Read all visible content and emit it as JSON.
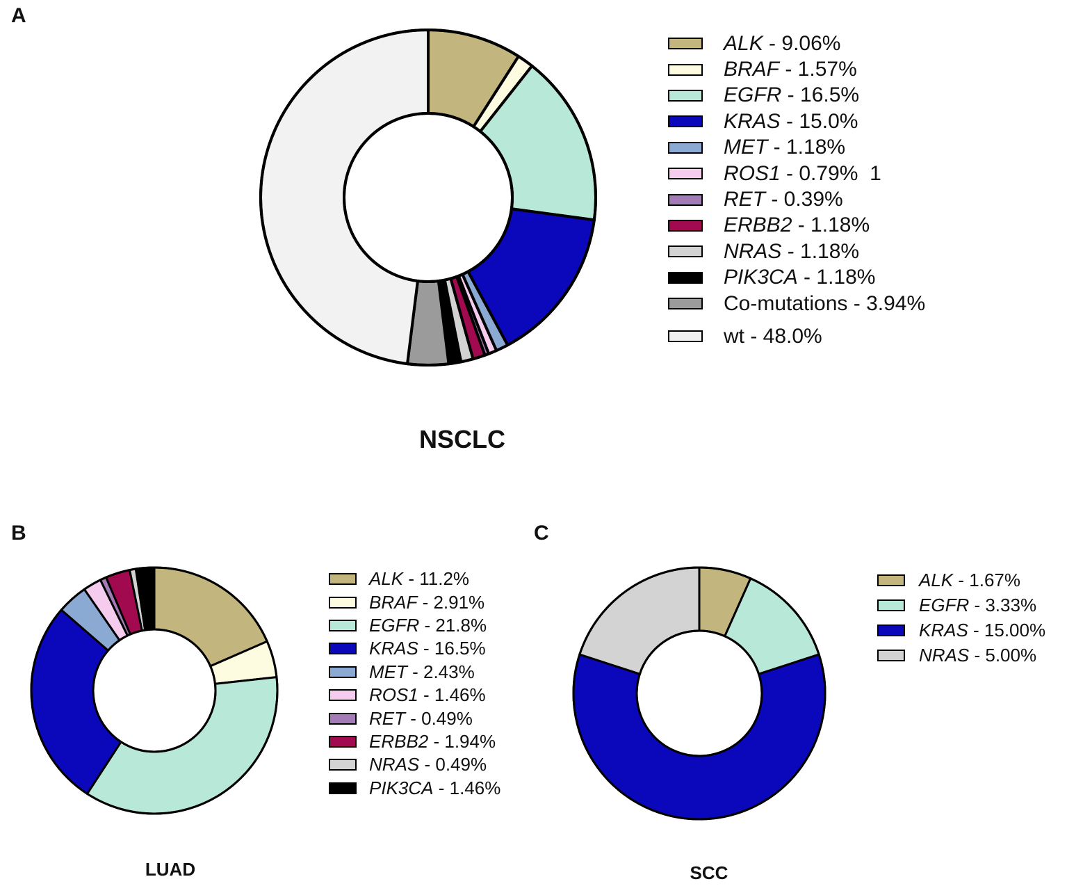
{
  "chart_data": [
    {
      "panel": "A",
      "type": "pie",
      "title": "NSCLC",
      "series": [
        {
          "name": "ALK",
          "label": " - 9.06%",
          "value": 9.06,
          "color": "#C2B57E"
        },
        {
          "name": "BRAF",
          "label": " - 1.57%",
          "value": 1.57,
          "color": "#FDFBE0"
        },
        {
          "name": "EGFR",
          "label": " - 16.5%",
          "value": 16.5,
          "color": "#B8E8D8"
        },
        {
          "name": "KRAS",
          "label": " - 15.0%",
          "value": 15.0,
          "color": "#0B08BC"
        },
        {
          "name": "MET",
          "label": " - 1.18%",
          "value": 1.18,
          "color": "#8AA9D3"
        },
        {
          "name": "ROS1",
          "label": " - 0.79%  1",
          "value": 0.79,
          "color": "#F5CCEE"
        },
        {
          "name": "RET",
          "label": " - 0.39%",
          "value": 0.39,
          "color": "#A37CB7"
        },
        {
          "name": "ERBB2",
          "label": " - 1.18%",
          "value": 1.18,
          "color": "#A10A4F"
        },
        {
          "name": "NRAS",
          "label": " - 1.18%",
          "value": 1.18,
          "color": "#D3D3D3"
        },
        {
          "name": "PIK3CA",
          "label": " - 1.18%",
          "value": 1.18,
          "color": "#000000"
        },
        {
          "name": "Co-mutations",
          "label": " - 3.94%",
          "value": 3.94,
          "color": "#9B9B9B",
          "plain": true
        },
        {
          "name": "wt",
          "label": " - 48.0%",
          "value": 48.0,
          "color": "#F2F2F2",
          "plain": true
        }
      ]
    },
    {
      "panel": "B",
      "type": "pie",
      "title": "LUAD",
      "series": [
        {
          "name": "ALK",
          "label": " - 11.2%",
          "value": 11.2,
          "color": "#C2B57E"
        },
        {
          "name": "BRAF",
          "label": " - 2.91%",
          "value": 2.91,
          "color": "#FDFBE0"
        },
        {
          "name": "EGFR",
          "label": " - 21.8%",
          "value": 21.8,
          "color": "#B8E8D8"
        },
        {
          "name": "KRAS",
          "label": " - 16.5%",
          "value": 16.5,
          "color": "#0B08BC"
        },
        {
          "name": "MET",
          "label": " - 2.43%",
          "value": 2.43,
          "color": "#8AA9D3"
        },
        {
          "name": "ROS1",
          "label": " - 1.46%",
          "value": 1.46,
          "color": "#F5CCEE"
        },
        {
          "name": "RET",
          "label": " - 0.49%",
          "value": 0.49,
          "color": "#A37CB7"
        },
        {
          "name": "ERBB2",
          "label": " - 1.94%",
          "value": 1.94,
          "color": "#A10A4F"
        },
        {
          "name": "NRAS",
          "label": " - 0.49%",
          "value": 0.49,
          "color": "#D3D3D3"
        },
        {
          "name": "PIK3CA",
          "label": " - 1.46%",
          "value": 1.46,
          "color": "#000000"
        }
      ]
    },
    {
      "panel": "C",
      "type": "pie",
      "title": "SCC",
      "series": [
        {
          "name": "ALK",
          "label": " - 1.67%",
          "value": 1.67,
          "color": "#C2B57E"
        },
        {
          "name": "EGFR",
          "label": " - 3.33%",
          "value": 3.33,
          "color": "#B8E8D8"
        },
        {
          "name": "KRAS",
          "label": " - 15.00%",
          "value": 15.0,
          "color": "#0B08BC"
        },
        {
          "name": "NRAS",
          "label": " - 5.00%",
          "value": 5.0,
          "color": "#D3D3D3"
        }
      ]
    }
  ]
}
